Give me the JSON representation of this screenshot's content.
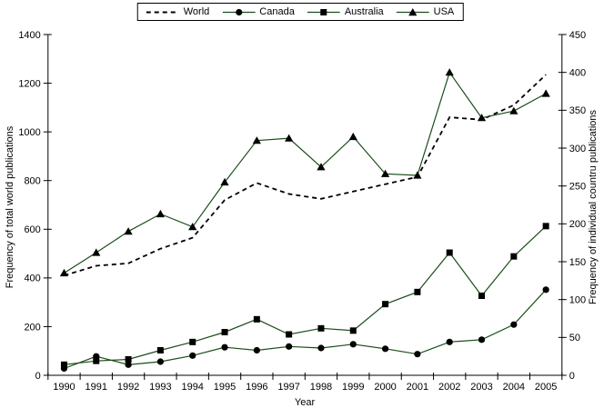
{
  "chart_data": {
    "type": "line",
    "title": "",
    "xlabel": "Year",
    "x_categories": [
      "1990",
      "1991",
      "1992",
      "1993",
      "1994",
      "1995",
      "1996",
      "1997",
      "1998",
      "1999",
      "2000",
      "2001",
      "2002",
      "2003",
      "2004",
      "2005"
    ],
    "left_axis": {
      "label": "Frequency of total world publications",
      "min": 0,
      "max": 1400,
      "step": 200,
      "ticks": [
        0,
        200,
        400,
        600,
        800,
        1000,
        1200,
        1400
      ]
    },
    "right_axis": {
      "label": "Frequency of individual countru publications",
      "min": 0,
      "max": 450,
      "step": 50,
      "ticks": [
        0,
        50,
        100,
        150,
        200,
        250,
        300,
        350,
        400,
        450
      ]
    },
    "grid": false,
    "legend": {
      "position": "top-center",
      "entries": [
        "World",
        "Canada",
        "Australia",
        "USA"
      ]
    },
    "colors": {
      "line_green": "#1a4d1a",
      "black": "#000000",
      "background": "#ffffff"
    },
    "series": [
      {
        "name": "World",
        "axis": "left",
        "line": "dashed",
        "marker": "none",
        "color": "#000000",
        "values": [
          410,
          450,
          460,
          520,
          565,
          720,
          790,
          745,
          725,
          755,
          785,
          815,
          1060,
          1050,
          1110,
          1235
        ]
      },
      {
        "name": "Canada",
        "axis": "right",
        "line": "solid",
        "marker": "circle",
        "color": "#1a4d1a",
        "marker_color": "#000000",
        "values": [
          9,
          25,
          14,
          18,
          26,
          37,
          33,
          38,
          36,
          41,
          35,
          28,
          44,
          47,
          67,
          113
        ]
      },
      {
        "name": "Australia",
        "axis": "right",
        "line": "solid",
        "marker": "square",
        "color": "#1a4d1a",
        "marker_color": "#000000",
        "values": [
          14,
          19,
          21,
          33,
          44,
          57,
          74,
          54,
          62,
          59,
          94,
          110,
          162,
          105,
          157,
          197
        ]
      },
      {
        "name": "USA",
        "axis": "right",
        "line": "solid",
        "marker": "triangle",
        "color": "#1a4d1a",
        "marker_color": "#000000",
        "values": [
          135,
          162,
          190,
          213,
          196,
          255,
          310,
          313,
          275,
          315,
          266,
          264,
          400,
          340,
          349,
          372
        ]
      }
    ]
  }
}
